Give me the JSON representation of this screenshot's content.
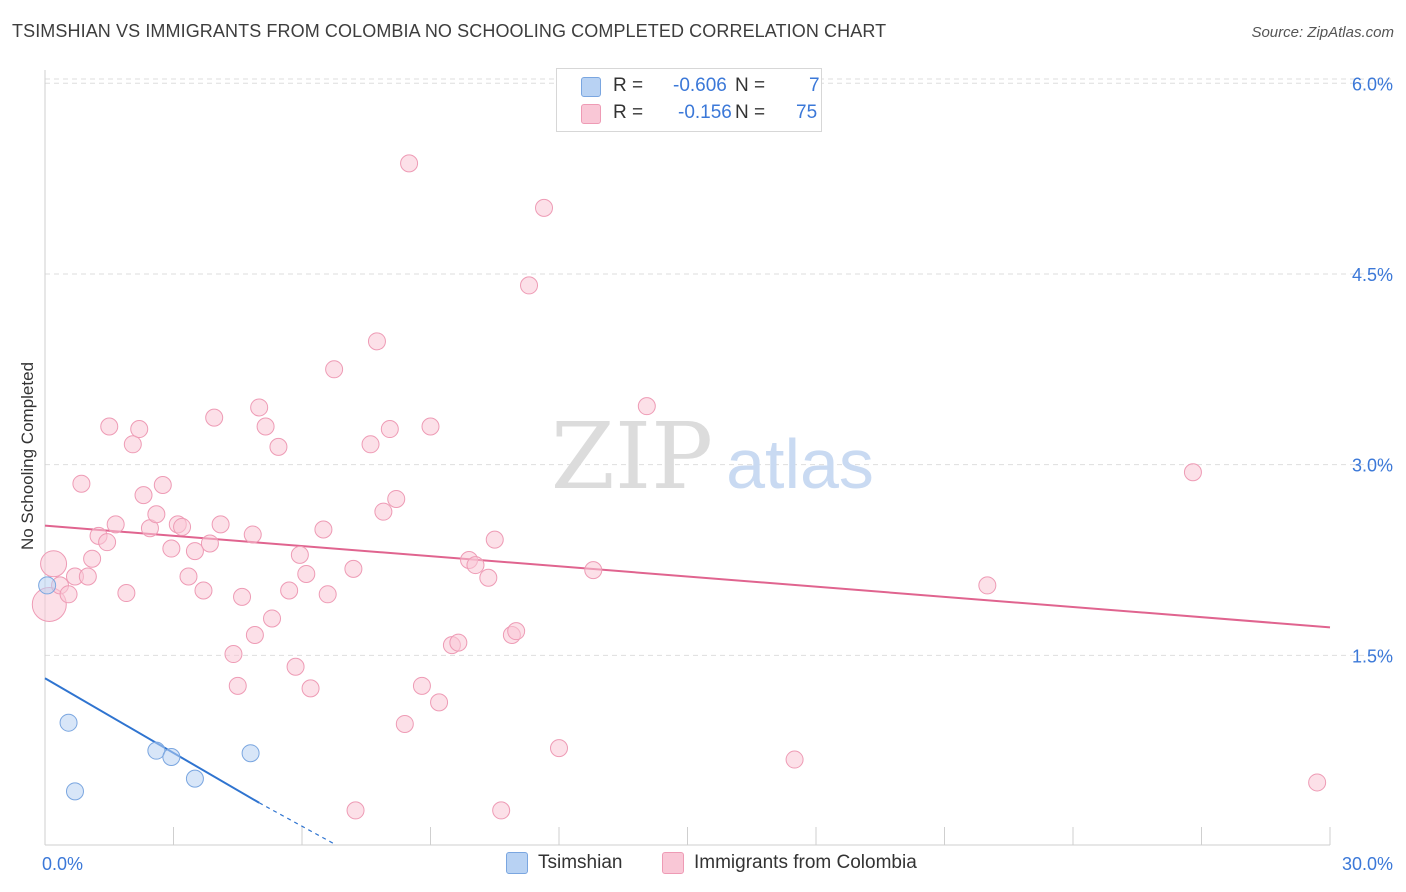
{
  "title": "TSIMSHIAN VS IMMIGRANTS FROM COLOMBIA NO SCHOOLING COMPLETED CORRELATION CHART",
  "source": "Source: ZipAtlas.com",
  "watermark": {
    "zip": "ZIP",
    "atlas": "atlas"
  },
  "legend": {
    "rows": [
      {
        "r_label": "R =",
        "r_value": "-0.606",
        "n_label": "N =",
        "n_value": "7",
        "color": "#b8d2f3",
        "border": "#7aa6e0"
      },
      {
        "r_label": "R =",
        "r_value": "-0.156",
        "n_label": "N =",
        "n_value": "75",
        "color": "#f9c7d6",
        "border": "#ee9bb5"
      }
    ]
  },
  "bottom_legend": [
    {
      "label": "Tsimshian",
      "color": "#b8d2f3",
      "border": "#7aa6e0"
    },
    {
      "label": "Immigrants from Colombia",
      "color": "#f9c7d6",
      "border": "#ee9bb5"
    }
  ],
  "chart_data": {
    "type": "scatter",
    "title": "TSIMSHIAN VS IMMIGRANTS FROM COLOMBIA NO SCHOOLING COMPLETED CORRELATION CHART",
    "xlabel": "",
    "ylabel": "No Schooling Completed",
    "xlim": [
      0,
      30
    ],
    "ylim": [
      0,
      6.15
    ],
    "x_tick_labels": [
      "0.0%",
      "30.0%"
    ],
    "y_tick_values": [
      1.5,
      3.0,
      4.5,
      6.0
    ],
    "y_tick_labels": [
      "1.5%",
      "3.0%",
      "4.5%",
      "6.0%"
    ],
    "grid": true,
    "series": [
      {
        "name": "Tsimshian",
        "color": "#7aa6e0",
        "fill": "#b8d2f3",
        "line_color": "#2f74d0",
        "points": [
          [
            0.05,
            2.05
          ],
          [
            0.55,
            0.97
          ],
          [
            0.7,
            0.43
          ],
          [
            2.6,
            0.75
          ],
          [
            2.95,
            0.7
          ],
          [
            3.5,
            0.53
          ],
          [
            4.8,
            0.73
          ]
        ],
        "trend": {
          "x1": 0,
          "y1": 1.32,
          "x2": 5.0,
          "y2": 0.34,
          "dash_x2": 6.8,
          "dash_y2": -0.02
        }
      },
      {
        "name": "Immigrants from Colombia",
        "color": "#ee9bb5",
        "fill": "#f9c7d6",
        "line_color": "#e0648f",
        "points": [
          [
            0.1,
            1.9
          ],
          [
            0.2,
            2.22
          ],
          [
            0.35,
            2.05
          ],
          [
            0.55,
            1.98
          ],
          [
            0.7,
            2.12
          ],
          [
            0.85,
            2.85
          ],
          [
            1.0,
            2.12
          ],
          [
            1.1,
            2.26
          ],
          [
            1.25,
            2.44
          ],
          [
            1.45,
            2.39
          ],
          [
            1.5,
            3.3
          ],
          [
            1.65,
            2.53
          ],
          [
            1.9,
            1.99
          ],
          [
            2.05,
            3.16
          ],
          [
            2.2,
            3.28
          ],
          [
            2.3,
            2.76
          ],
          [
            2.45,
            2.5
          ],
          [
            2.6,
            2.61
          ],
          [
            2.75,
            2.84
          ],
          [
            2.95,
            2.34
          ],
          [
            3.1,
            2.53
          ],
          [
            3.2,
            2.51
          ],
          [
            3.35,
            2.12
          ],
          [
            3.5,
            2.32
          ],
          [
            3.7,
            2.01
          ],
          [
            3.85,
            2.38
          ],
          [
            3.95,
            3.37
          ],
          [
            4.1,
            2.53
          ],
          [
            4.4,
            1.51
          ],
          [
            4.5,
            1.26
          ],
          [
            4.6,
            1.96
          ],
          [
            4.85,
            2.45
          ],
          [
            4.9,
            1.66
          ],
          [
            5.0,
            3.45
          ],
          [
            5.15,
            3.3
          ],
          [
            5.3,
            1.79
          ],
          [
            5.45,
            3.14
          ],
          [
            5.7,
            2.01
          ],
          [
            5.85,
            1.41
          ],
          [
            5.95,
            2.29
          ],
          [
            6.1,
            2.14
          ],
          [
            6.2,
            1.24
          ],
          [
            6.5,
            2.49
          ],
          [
            6.6,
            1.98
          ],
          [
            6.75,
            3.75
          ],
          [
            7.2,
            2.18
          ],
          [
            7.25,
            0.28
          ],
          [
            7.6,
            3.16
          ],
          [
            7.75,
            3.97
          ],
          [
            7.9,
            2.63
          ],
          [
            8.05,
            3.28
          ],
          [
            8.2,
            2.73
          ],
          [
            8.4,
            0.96
          ],
          [
            8.5,
            5.37
          ],
          [
            8.8,
            1.26
          ],
          [
            9.0,
            3.3
          ],
          [
            9.2,
            1.13
          ],
          [
            9.5,
            1.58
          ],
          [
            9.65,
            1.6
          ],
          [
            9.9,
            2.25
          ],
          [
            10.05,
            2.21
          ],
          [
            10.35,
            2.11
          ],
          [
            10.5,
            2.41
          ],
          [
            10.65,
            0.28
          ],
          [
            10.9,
            1.66
          ],
          [
            11.0,
            1.69
          ],
          [
            11.3,
            4.41
          ],
          [
            11.65,
            5.02
          ],
          [
            12.0,
            0.77
          ],
          [
            12.8,
            2.17
          ],
          [
            14.05,
            3.46
          ],
          [
            17.5,
            0.68
          ],
          [
            22.0,
            2.05
          ],
          [
            26.8,
            2.94
          ],
          [
            29.7,
            0.5
          ]
        ],
        "trend": {
          "x1": 0,
          "y1": 2.52,
          "x2": 30,
          "y2": 1.72
        }
      }
    ]
  }
}
